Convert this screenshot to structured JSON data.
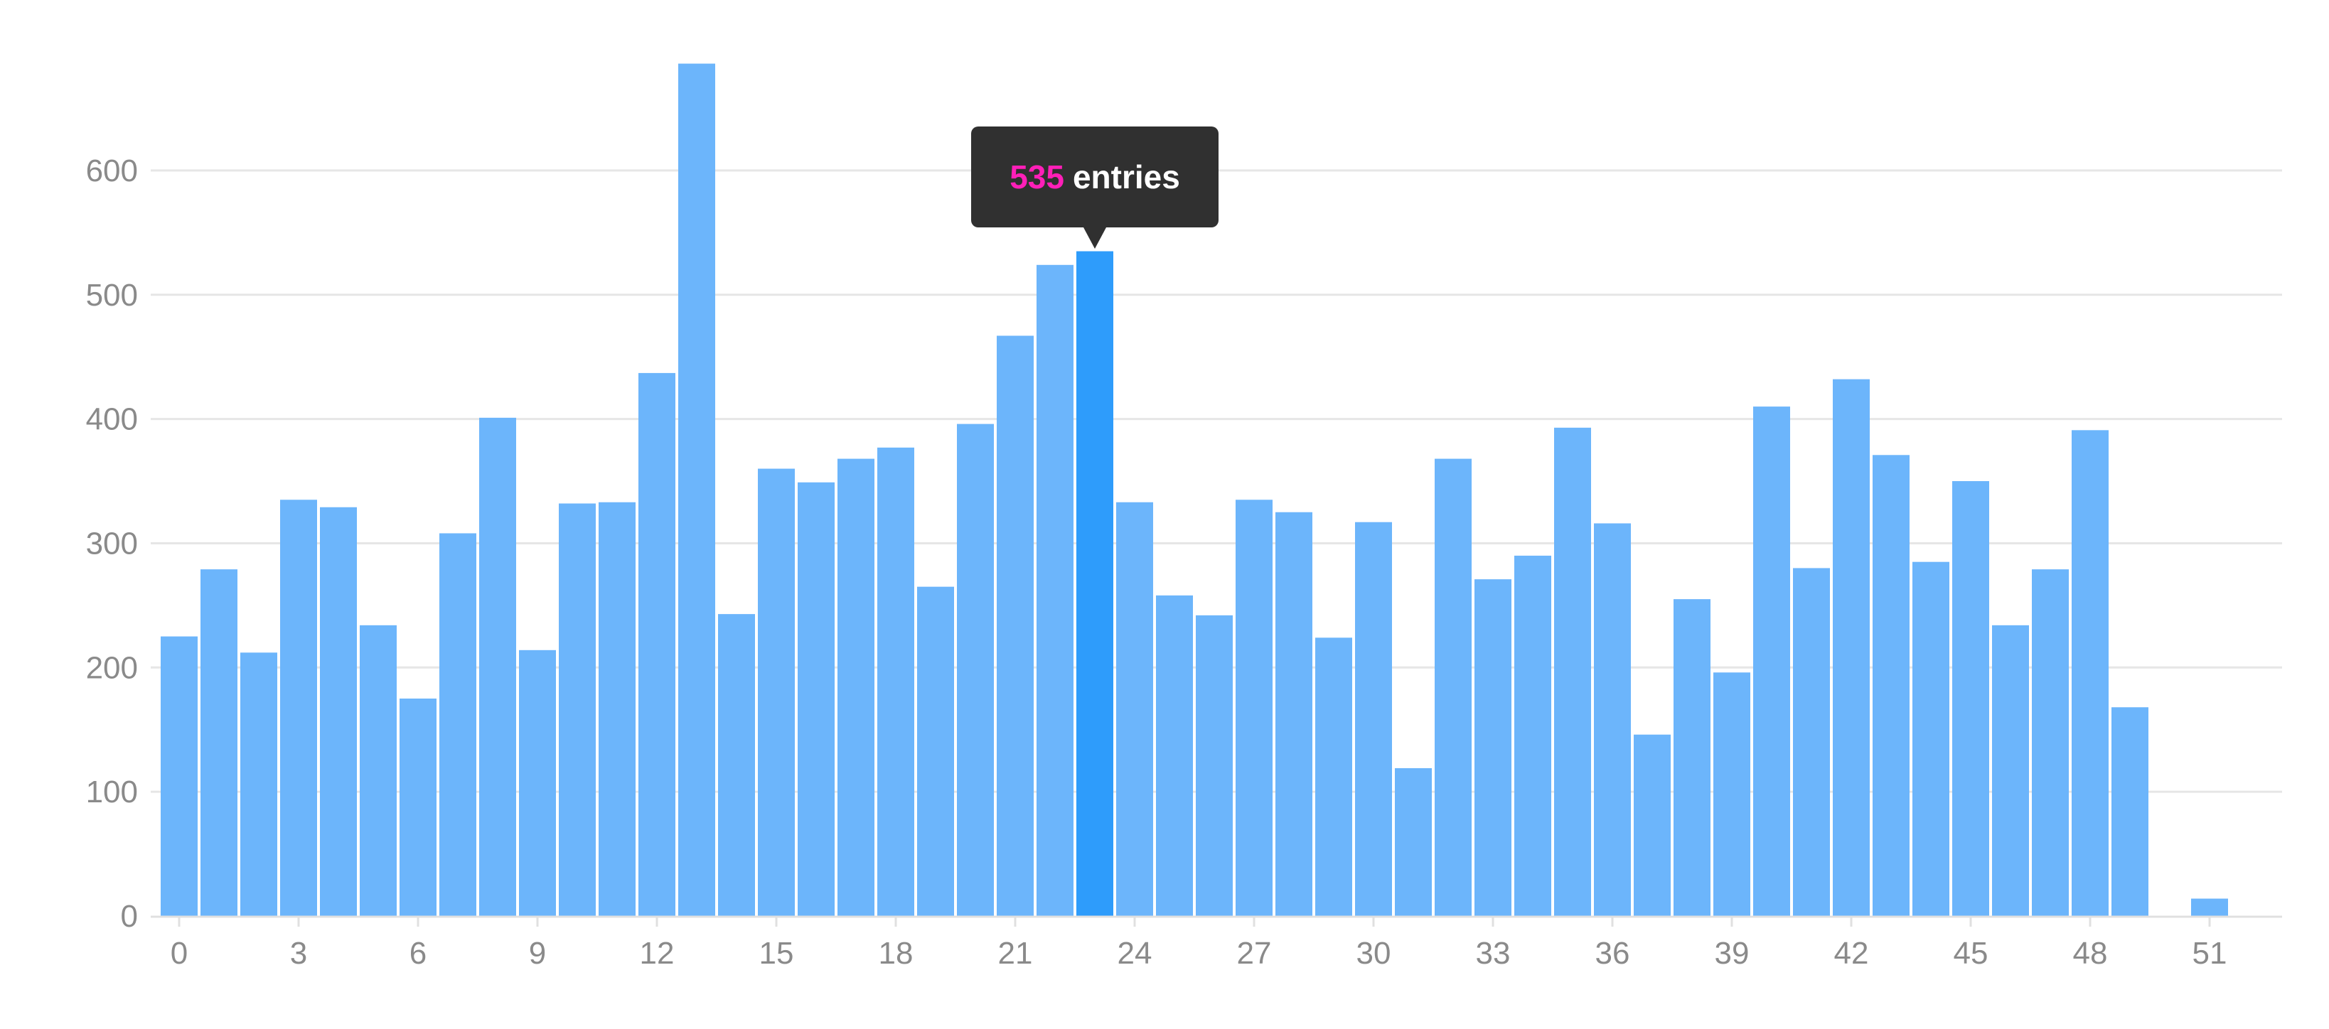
{
  "chart_data": {
    "type": "bar",
    "x": [
      0,
      1,
      2,
      3,
      4,
      5,
      6,
      7,
      8,
      9,
      10,
      11,
      12,
      13,
      14,
      15,
      16,
      17,
      18,
      19,
      20,
      21,
      22,
      23,
      24,
      25,
      26,
      27,
      28,
      29,
      30,
      31,
      32,
      33,
      34,
      35,
      36,
      37,
      38,
      39,
      40,
      41,
      42,
      43,
      44,
      45,
      46,
      47,
      48,
      49,
      50,
      51
    ],
    "values": [
      225,
      279,
      212,
      335,
      329,
      234,
      175,
      308,
      401,
      214,
      332,
      333,
      437,
      686,
      243,
      360,
      349,
      368,
      377,
      265,
      396,
      467,
      524,
      535,
      333,
      258,
      242,
      335,
      325,
      224,
      317,
      119,
      368,
      271,
      290,
      393,
      316,
      146,
      255,
      196,
      410,
      280,
      432,
      371,
      285,
      350,
      234,
      279,
      391,
      168,
      0,
      14
    ],
    "xticks": [
      0,
      3,
      6,
      9,
      12,
      15,
      18,
      21,
      24,
      27,
      30,
      33,
      36,
      39,
      42,
      45,
      48,
      51
    ],
    "yticks": [
      0,
      100,
      200,
      300,
      400,
      500,
      600
    ],
    "ylim": [
      0,
      686
    ],
    "xlim": [
      -0.5,
      52.5
    ],
    "grid": true,
    "legend": "none",
    "highlight_index": 23,
    "colors": {
      "bar": "#6cb5fb",
      "bar_highlight": "#2e9cfb",
      "tooltip_value": "#ff1fb8",
      "tooltip_bg": "#303030"
    },
    "tooltip": {
      "value": "535",
      "suffix": "entries"
    }
  }
}
